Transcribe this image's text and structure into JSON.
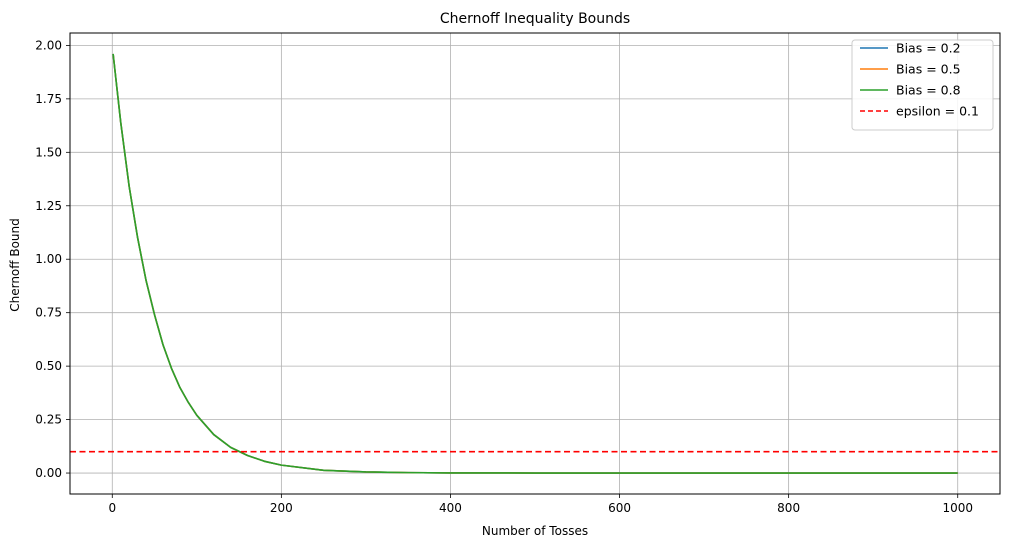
{
  "chart_data": {
    "type": "line",
    "title": "Chernoff Inequality Bounds",
    "xlabel": "Number of Tosses",
    "ylabel": "Chernoff Bound",
    "xlim": [
      -50,
      1050
    ],
    "ylim": [
      -0.098,
      2.058
    ],
    "xticks": [
      0,
      200,
      400,
      600,
      800,
      1000
    ],
    "yticks": [
      0.0,
      0.25,
      0.5,
      0.75,
      1.0,
      1.25,
      1.5,
      1.75,
      2.0
    ],
    "xtick_labels": [
      "0",
      "200",
      "400",
      "600",
      "800",
      "1000"
    ],
    "ytick_labels": [
      "0.00",
      "0.25",
      "0.50",
      "0.75",
      "1.00",
      "1.25",
      "1.50",
      "1.75",
      "2.00"
    ],
    "grid": true,
    "legend_position": "top-right",
    "series": [
      {
        "name": "Bias = 0.2",
        "color": "#1f77b4",
        "style": "solid",
        "x": [
          1,
          10,
          20,
          30,
          40,
          50,
          60,
          70,
          80,
          90,
          100,
          120,
          140,
          160,
          180,
          200,
          250,
          300,
          350,
          400,
          500,
          600,
          700,
          800,
          900,
          1000
        ],
        "values": [
          1.96,
          1.64,
          1.34,
          1.1,
          0.9,
          0.74,
          0.6,
          0.49,
          0.4,
          0.33,
          0.27,
          0.18,
          0.12,
          0.082,
          0.055,
          0.037,
          0.013,
          0.005,
          0.002,
          0.0007,
          0.0001,
          0.0,
          0.0,
          0.0,
          0.0,
          0.0
        ]
      },
      {
        "name": "Bias = 0.5",
        "color": "#ff7f0e",
        "style": "solid",
        "x": [
          1,
          10,
          20,
          30,
          40,
          50,
          60,
          70,
          80,
          90,
          100,
          120,
          140,
          160,
          180,
          200,
          250,
          300,
          350,
          400,
          500,
          600,
          700,
          800,
          900,
          1000
        ],
        "values": [
          1.96,
          1.64,
          1.34,
          1.1,
          0.9,
          0.74,
          0.6,
          0.49,
          0.4,
          0.33,
          0.27,
          0.18,
          0.12,
          0.082,
          0.055,
          0.037,
          0.013,
          0.005,
          0.002,
          0.0007,
          0.0001,
          0.0,
          0.0,
          0.0,
          0.0,
          0.0
        ]
      },
      {
        "name": "Bias = 0.8",
        "color": "#2ca02c",
        "style": "solid",
        "x": [
          1,
          10,
          20,
          30,
          40,
          50,
          60,
          70,
          80,
          90,
          100,
          120,
          140,
          160,
          180,
          200,
          250,
          300,
          350,
          400,
          500,
          600,
          700,
          800,
          900,
          1000
        ],
        "values": [
          1.96,
          1.64,
          1.34,
          1.1,
          0.9,
          0.74,
          0.6,
          0.49,
          0.4,
          0.33,
          0.27,
          0.18,
          0.12,
          0.082,
          0.055,
          0.037,
          0.013,
          0.005,
          0.002,
          0.0007,
          0.0001,
          0.0,
          0.0,
          0.0,
          0.0,
          0.0
        ]
      }
    ],
    "reference_lines": [
      {
        "name": "epsilon = 0.1",
        "y": 0.1,
        "color": "#ff0000",
        "style": "dashed"
      }
    ]
  }
}
